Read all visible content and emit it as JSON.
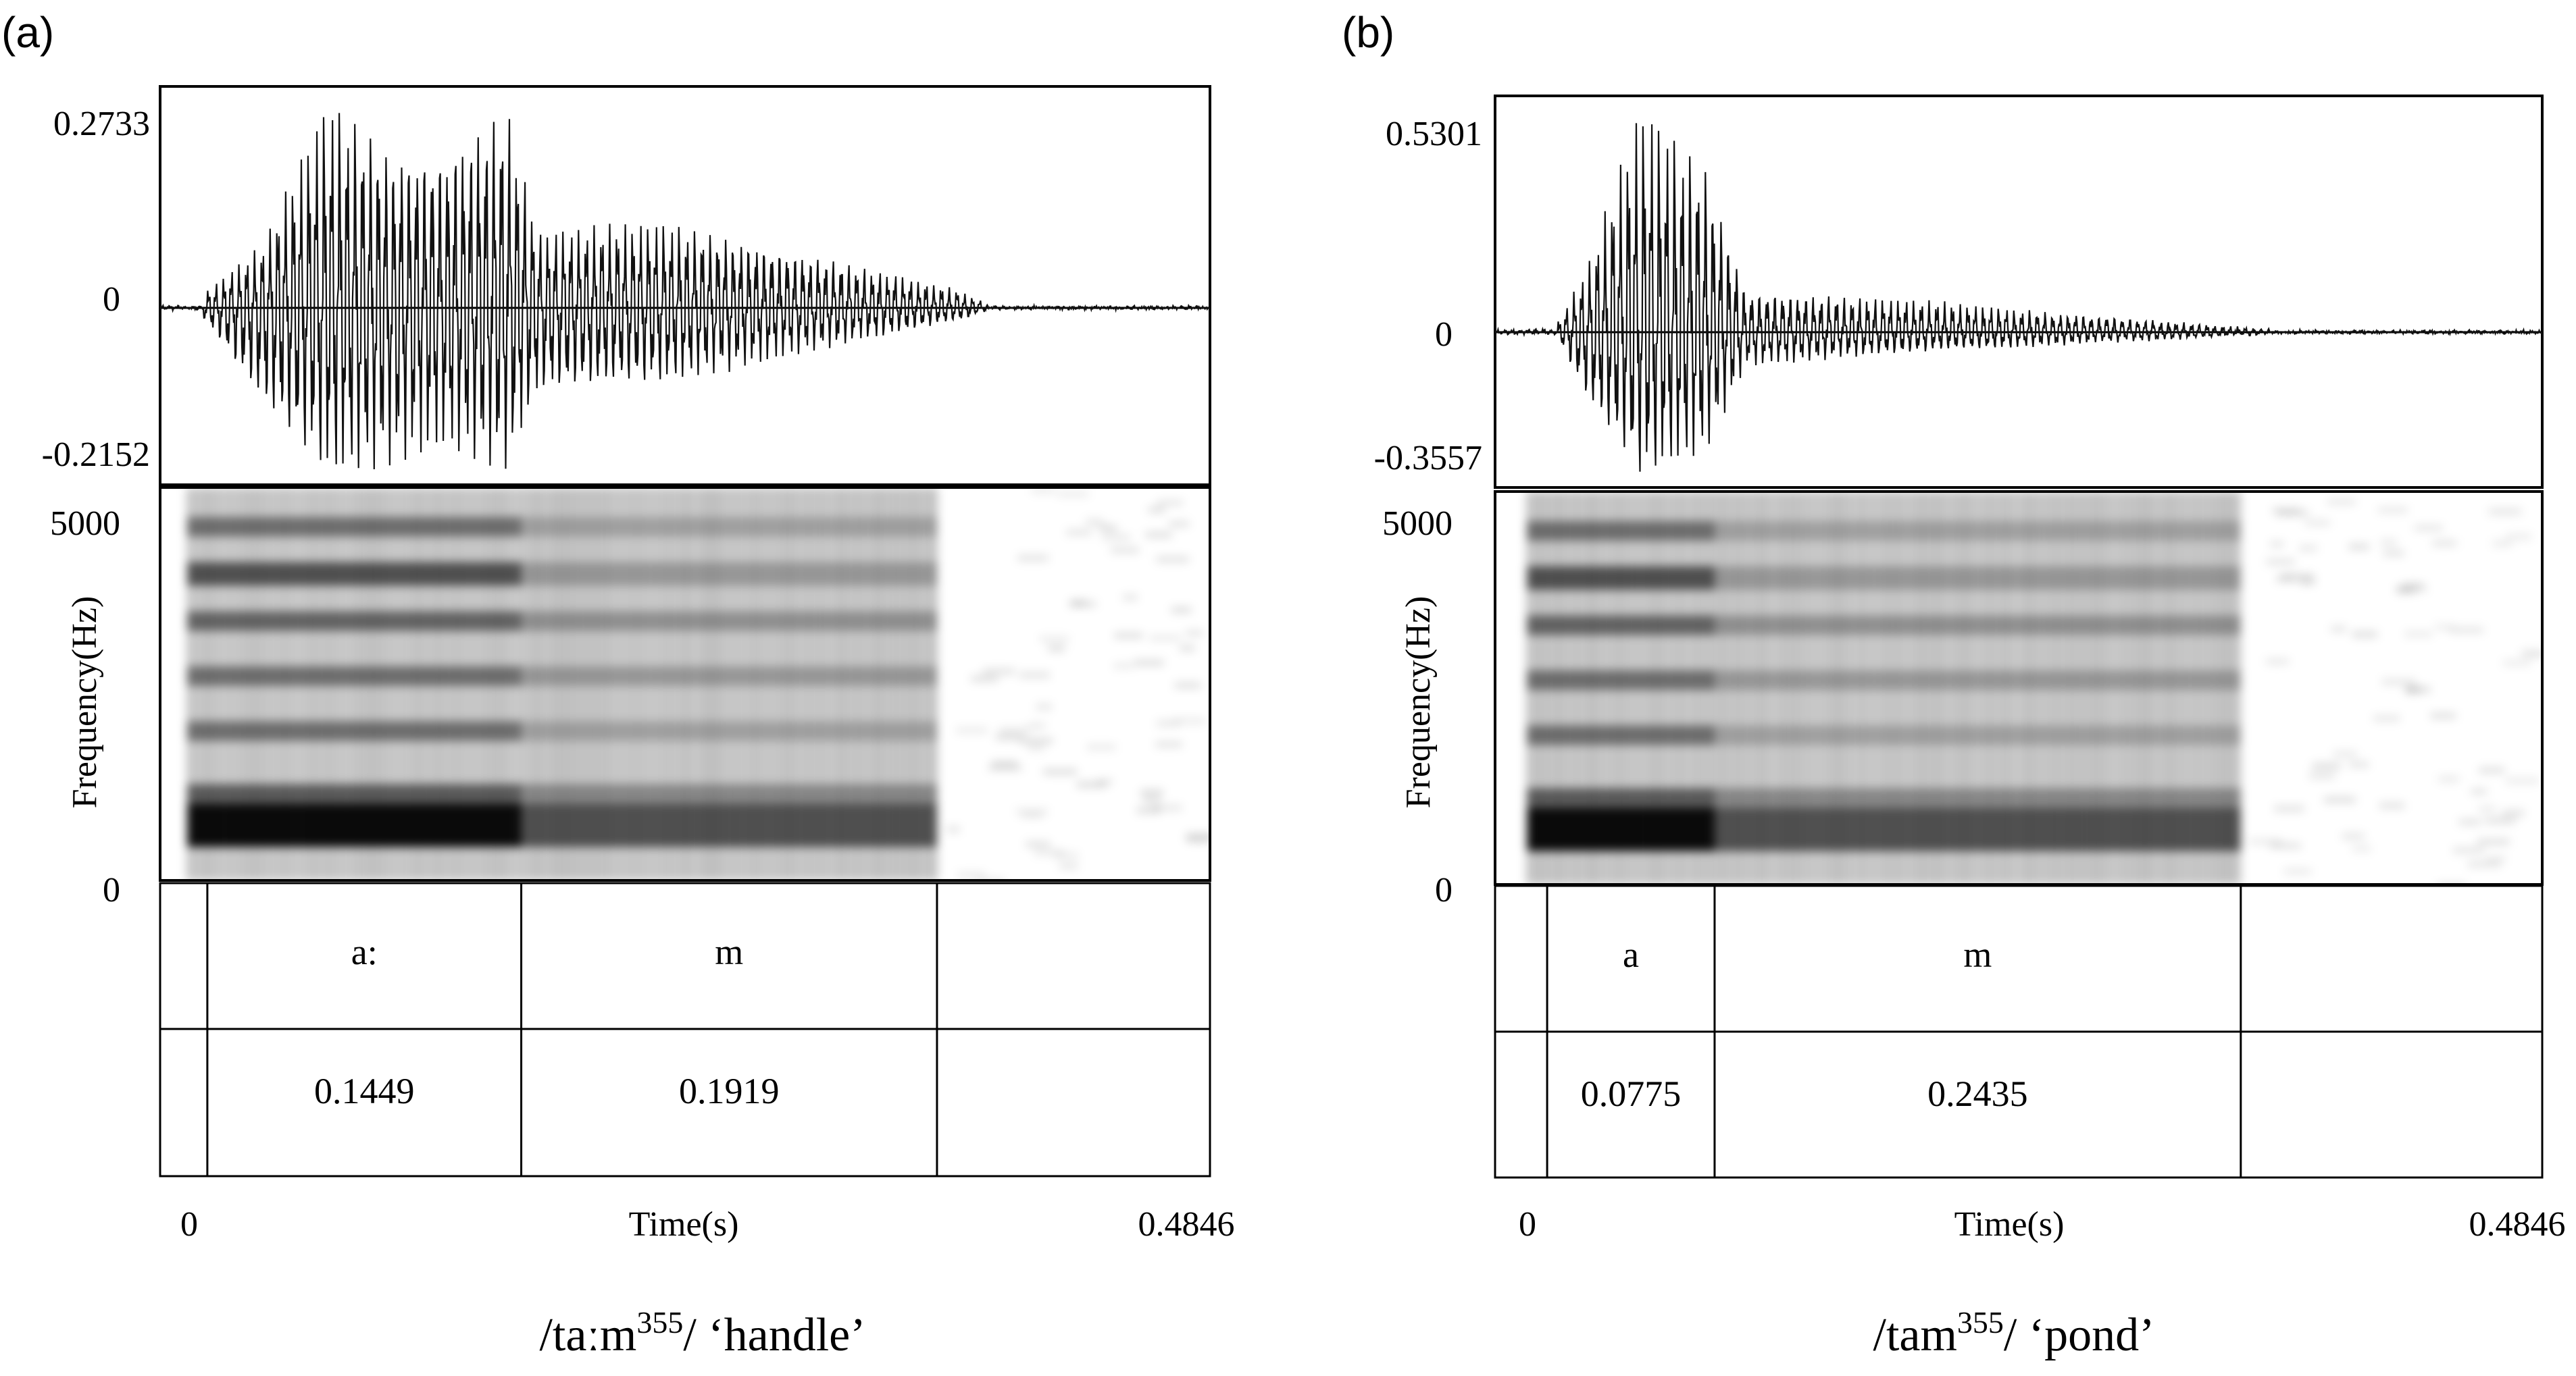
{
  "chart_data": [
    {
      "type": "spectrogram",
      "panel_label": "(a)",
      "caption": {
        "prefix": "/taːm",
        "superscript": "355",
        "suffix": "/ ‘handle’"
      },
      "waveform": {
        "ymax_label": "0.2733",
        "zero_label": "0",
        "ymin_label": "-0.2152",
        "ylim": [
          -0.2152,
          0.2733
        ]
      },
      "spectrogram": {
        "ylabel": "Frequency(Hz)",
        "ymax_label": "5000",
        "ymin_label": "0",
        "ylim": [
          0,
          5000
        ]
      },
      "segments": [
        {
          "label": "",
          "duration": ""
        },
        {
          "label": "a:",
          "duration": "0.1449"
        },
        {
          "label": "m",
          "duration": "0.1919"
        },
        {
          "label": "",
          "duration": ""
        }
      ],
      "boundaries_s": [
        0,
        0.0218,
        0.1667,
        0.3586,
        0.4846
      ],
      "x": {
        "label": "Time(s)",
        "start_label": "0",
        "end_label": "0.4846",
        "xlim": [
          0,
          0.4846
        ]
      }
    },
    {
      "type": "spectrogram",
      "panel_label": "(b)",
      "caption": {
        "prefix": "/tam",
        "superscript": "355",
        "suffix": "/ ‘pond’"
      },
      "waveform": {
        "ymax_label": "0.5301",
        "zero_label": "0",
        "ymin_label": "-0.3557",
        "ylim": [
          -0.3557,
          0.5301
        ]
      },
      "spectrogram": {
        "ylabel": "Frequency(Hz)",
        "ymax_label": "5000",
        "ymin_label": "0",
        "ylim": [
          0,
          5000
        ]
      },
      "segments": [
        {
          "label": "",
          "duration": ""
        },
        {
          "label": "a",
          "duration": "0.0775"
        },
        {
          "label": "m",
          "duration": "0.2435"
        },
        {
          "label": "",
          "duration": ""
        }
      ],
      "boundaries_s": [
        0,
        0.0241,
        0.1016,
        0.3451,
        0.4846
      ],
      "x": {
        "label": "Time(s)",
        "start_label": "0",
        "end_label": "0.4846",
        "xlim": [
          0,
          0.4846
        ]
      }
    }
  ]
}
